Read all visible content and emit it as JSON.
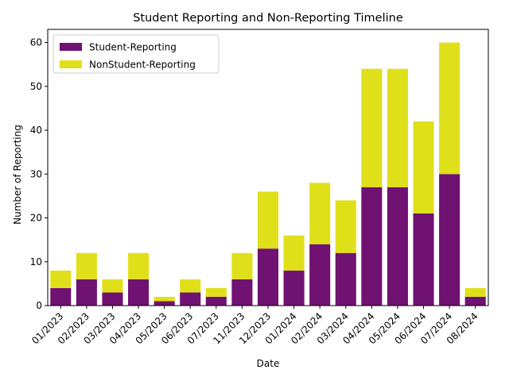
{
  "chart_data": {
    "type": "bar",
    "stacked": true,
    "title": "Student Reporting and Non-Reporting Timeline",
    "xlabel": "Date",
    "ylabel": "Number of Reporting",
    "ylim": [
      0,
      63
    ],
    "yticks": [
      "0",
      "10",
      "20",
      "30",
      "40",
      "50",
      "60"
    ],
    "categories": [
      "01/2023",
      "02/2023",
      "03/2023",
      "04/2023",
      "05/2023",
      "06/2023",
      "07/2023",
      "11/2023",
      "12/2023",
      "01/2024",
      "02/2024",
      "03/2024",
      "04/2024",
      "05/2024",
      "06/2024",
      "07/2024",
      "08/2024"
    ],
    "series": [
      {
        "name": "Student-Reporting",
        "color": "#701272",
        "values": [
          4,
          6,
          3,
          6,
          1,
          3,
          2,
          6,
          13,
          8,
          14,
          12,
          27,
          27,
          21,
          30,
          2
        ]
      },
      {
        "name": "NonStudent-Reporting",
        "color": "#e0e01a",
        "values": [
          4,
          6,
          3,
          6,
          1,
          3,
          2,
          6,
          13,
          8,
          14,
          12,
          27,
          27,
          21,
          30,
          2
        ]
      }
    ],
    "legend_position": "top-left",
    "grid": false
  }
}
